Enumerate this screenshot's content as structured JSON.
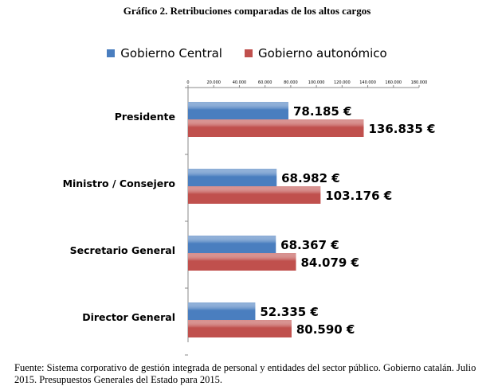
{
  "title": "Gráfico 2. Retribuciones comparadas de los altos cargos",
  "source_note": "Fuente: Sistema corporativo de gestión integrada de personal y entidades del sector público. Gobierno catalán. Julio 2015. Presupuestos Generales del Estado para 2015.",
  "chart_data": {
    "type": "bar",
    "orientation": "horizontal",
    "categories": [
      "Presidente",
      "Ministro / Consejero",
      "Secretario General",
      "Director General"
    ],
    "series": [
      {
        "name": "Gobierno Central",
        "color": "#4a7ebf",
        "values": [
          78185,
          68982,
          68367,
          52335
        ],
        "labels": [
          "78.185 €",
          "68.982 €",
          "68.367 €",
          "52.335 €"
        ]
      },
      {
        "name": "Gobierno autonómico",
        "color": "#c0504d",
        "values": [
          136835,
          103176,
          84079,
          80590
        ],
        "labels": [
          "136.835 €",
          "103.176 €",
          "84.079 €",
          "80.590 €"
        ]
      }
    ],
    "xlim": [
      0,
      180000
    ],
    "xticks": [
      0,
      20000,
      40000,
      60000,
      80000,
      100000,
      120000,
      140000,
      160000,
      180000
    ],
    "xtick_labels": [
      "0",
      "20.000",
      "40.000",
      "60.000",
      "80.000",
      "100.000",
      "120.000",
      "140.000",
      "160.000",
      "180.000"
    ],
    "grid": false,
    "legend": "top-center"
  }
}
